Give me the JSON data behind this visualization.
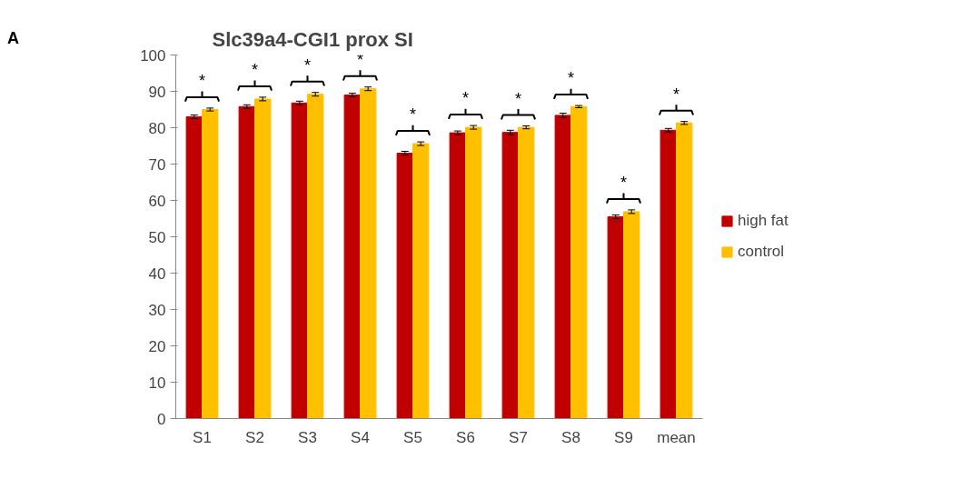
{
  "chart_data": {
    "type": "bar",
    "title": "Slc39a4-CGI1 prox SI",
    "categories": [
      "S1",
      "S2",
      "S3",
      "S4",
      "S5",
      "S6",
      "S7",
      "S8",
      "S9",
      "mean"
    ],
    "series": [
      {
        "name": "high fat",
        "color": "#c00000",
        "values": [
          83,
          85.8,
          86.8,
          89,
          73,
          78.6,
          78.7,
          83.4,
          55.5,
          79.3
        ],
        "errors": [
          0.5,
          0.5,
          0.5,
          0.5,
          0.5,
          0.5,
          0.6,
          0.6,
          0.5,
          0.5
        ]
      },
      {
        "name": "control",
        "color": "#ffc000",
        "values": [
          85,
          87.9,
          89.2,
          90.7,
          75.6,
          80.1,
          80.1,
          85.8,
          56.9,
          81.3
        ],
        "errors": [
          0.4,
          0.5,
          0.5,
          0.5,
          0.5,
          0.5,
          0.4,
          0.3,
          0.5,
          0.4
        ]
      }
    ],
    "ylim": [
      0,
      100
    ],
    "yticks": [
      0,
      10,
      20,
      30,
      40,
      50,
      60,
      70,
      80,
      90,
      100
    ],
    "grid": false,
    "legend": "right",
    "annotations": [
      "A",
      "*",
      "*",
      "*",
      "*",
      "*",
      "*",
      "*",
      "*",
      "*",
      "*"
    ]
  }
}
